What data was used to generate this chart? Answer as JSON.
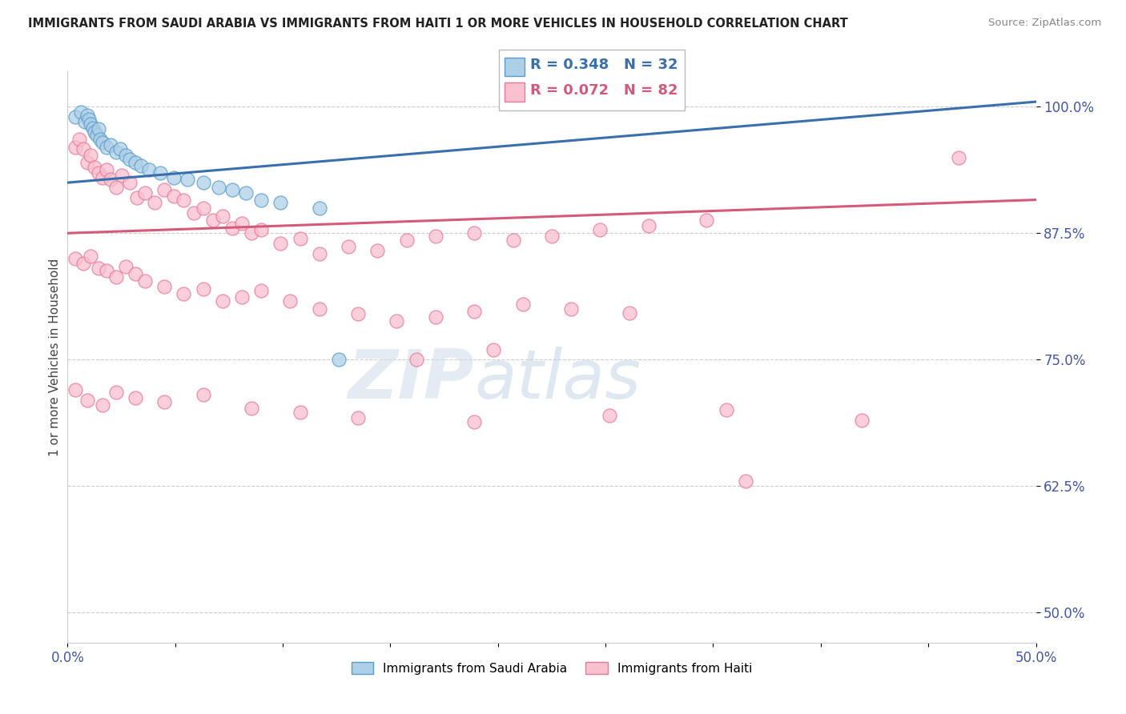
{
  "title": "IMMIGRANTS FROM SAUDI ARABIA VS IMMIGRANTS FROM HAITI 1 OR MORE VEHICLES IN HOUSEHOLD CORRELATION CHART",
  "source": "Source: ZipAtlas.com",
  "ylabel": "1 or more Vehicles in Household",
  "ytick_labels": [
    "50.0%",
    "62.5%",
    "75.0%",
    "87.5%",
    "100.0%"
  ],
  "ytick_values": [
    0.5,
    0.625,
    0.75,
    0.875,
    1.0
  ],
  "xlim": [
    0.0,
    0.5
  ],
  "ylim": [
    0.47,
    1.035
  ],
  "legend_blue_label": "Immigrants from Saudi Arabia",
  "legend_pink_label": "Immigrants from Haiti",
  "R_blue": 0.348,
  "N_blue": 32,
  "R_pink": 0.072,
  "N_pink": 82,
  "blue_fill": "#aecfe8",
  "blue_edge": "#5b9dc9",
  "pink_fill": "#f9c0cf",
  "pink_edge": "#e87a98",
  "blue_line_color": "#3a6fad",
  "pink_line_color": "#d45a7a",
  "watermark_zip": "ZIP",
  "watermark_atlas": "atlas",
  "blue_line_x0": 0.0,
  "blue_line_y0": 0.925,
  "blue_line_x1": 0.5,
  "blue_line_y1": 1.005,
  "pink_line_x0": 0.0,
  "pink_line_y0": 0.875,
  "pink_line_x1": 0.5,
  "pink_line_y1": 0.908,
  "blue_x": [
    0.004,
    0.007,
    0.009,
    0.01,
    0.011,
    0.012,
    0.013,
    0.014,
    0.015,
    0.016,
    0.017,
    0.018,
    0.02,
    0.022,
    0.025,
    0.027,
    0.03,
    0.032,
    0.035,
    0.038,
    0.042,
    0.048,
    0.055,
    0.062,
    0.07,
    0.078,
    0.085,
    0.092,
    0.1,
    0.11,
    0.13,
    0.14
  ],
  "blue_y": [
    0.99,
    0.995,
    0.985,
    0.992,
    0.988,
    0.983,
    0.979,
    0.975,
    0.972,
    0.978,
    0.968,
    0.965,
    0.96,
    0.962,
    0.955,
    0.958,
    0.952,
    0.948,
    0.945,
    0.942,
    0.938,
    0.935,
    0.93,
    0.928,
    0.925,
    0.92,
    0.918,
    0.915,
    0.908,
    0.905,
    0.9,
    0.75
  ],
  "pink_x": [
    0.004,
    0.006,
    0.008,
    0.01,
    0.012,
    0.014,
    0.016,
    0.018,
    0.02,
    0.022,
    0.025,
    0.028,
    0.032,
    0.036,
    0.04,
    0.045,
    0.05,
    0.055,
    0.06,
    0.065,
    0.07,
    0.075,
    0.08,
    0.085,
    0.09,
    0.095,
    0.1,
    0.11,
    0.12,
    0.13,
    0.145,
    0.16,
    0.175,
    0.19,
    0.21,
    0.23,
    0.25,
    0.275,
    0.3,
    0.33,
    0.004,
    0.008,
    0.012,
    0.016,
    0.02,
    0.025,
    0.03,
    0.035,
    0.04,
    0.05,
    0.06,
    0.07,
    0.08,
    0.09,
    0.1,
    0.115,
    0.13,
    0.15,
    0.17,
    0.19,
    0.21,
    0.235,
    0.26,
    0.29,
    0.004,
    0.01,
    0.018,
    0.025,
    0.035,
    0.05,
    0.07,
    0.095,
    0.12,
    0.15,
    0.21,
    0.28,
    0.34,
    0.41,
    0.35,
    0.46,
    0.18,
    0.22
  ],
  "pink_y": [
    0.96,
    0.968,
    0.958,
    0.945,
    0.952,
    0.94,
    0.935,
    0.93,
    0.938,
    0.928,
    0.92,
    0.932,
    0.925,
    0.91,
    0.915,
    0.905,
    0.918,
    0.912,
    0.908,
    0.895,
    0.9,
    0.888,
    0.892,
    0.88,
    0.885,
    0.875,
    0.878,
    0.865,
    0.87,
    0.855,
    0.862,
    0.858,
    0.868,
    0.872,
    0.875,
    0.868,
    0.872,
    0.878,
    0.882,
    0.888,
    0.85,
    0.845,
    0.852,
    0.84,
    0.838,
    0.832,
    0.842,
    0.835,
    0.828,
    0.822,
    0.815,
    0.82,
    0.808,
    0.812,
    0.818,
    0.808,
    0.8,
    0.795,
    0.788,
    0.792,
    0.798,
    0.805,
    0.8,
    0.796,
    0.72,
    0.71,
    0.705,
    0.718,
    0.712,
    0.708,
    0.715,
    0.702,
    0.698,
    0.692,
    0.688,
    0.695,
    0.7,
    0.69,
    0.63,
    0.95,
    0.75,
    0.76
  ]
}
